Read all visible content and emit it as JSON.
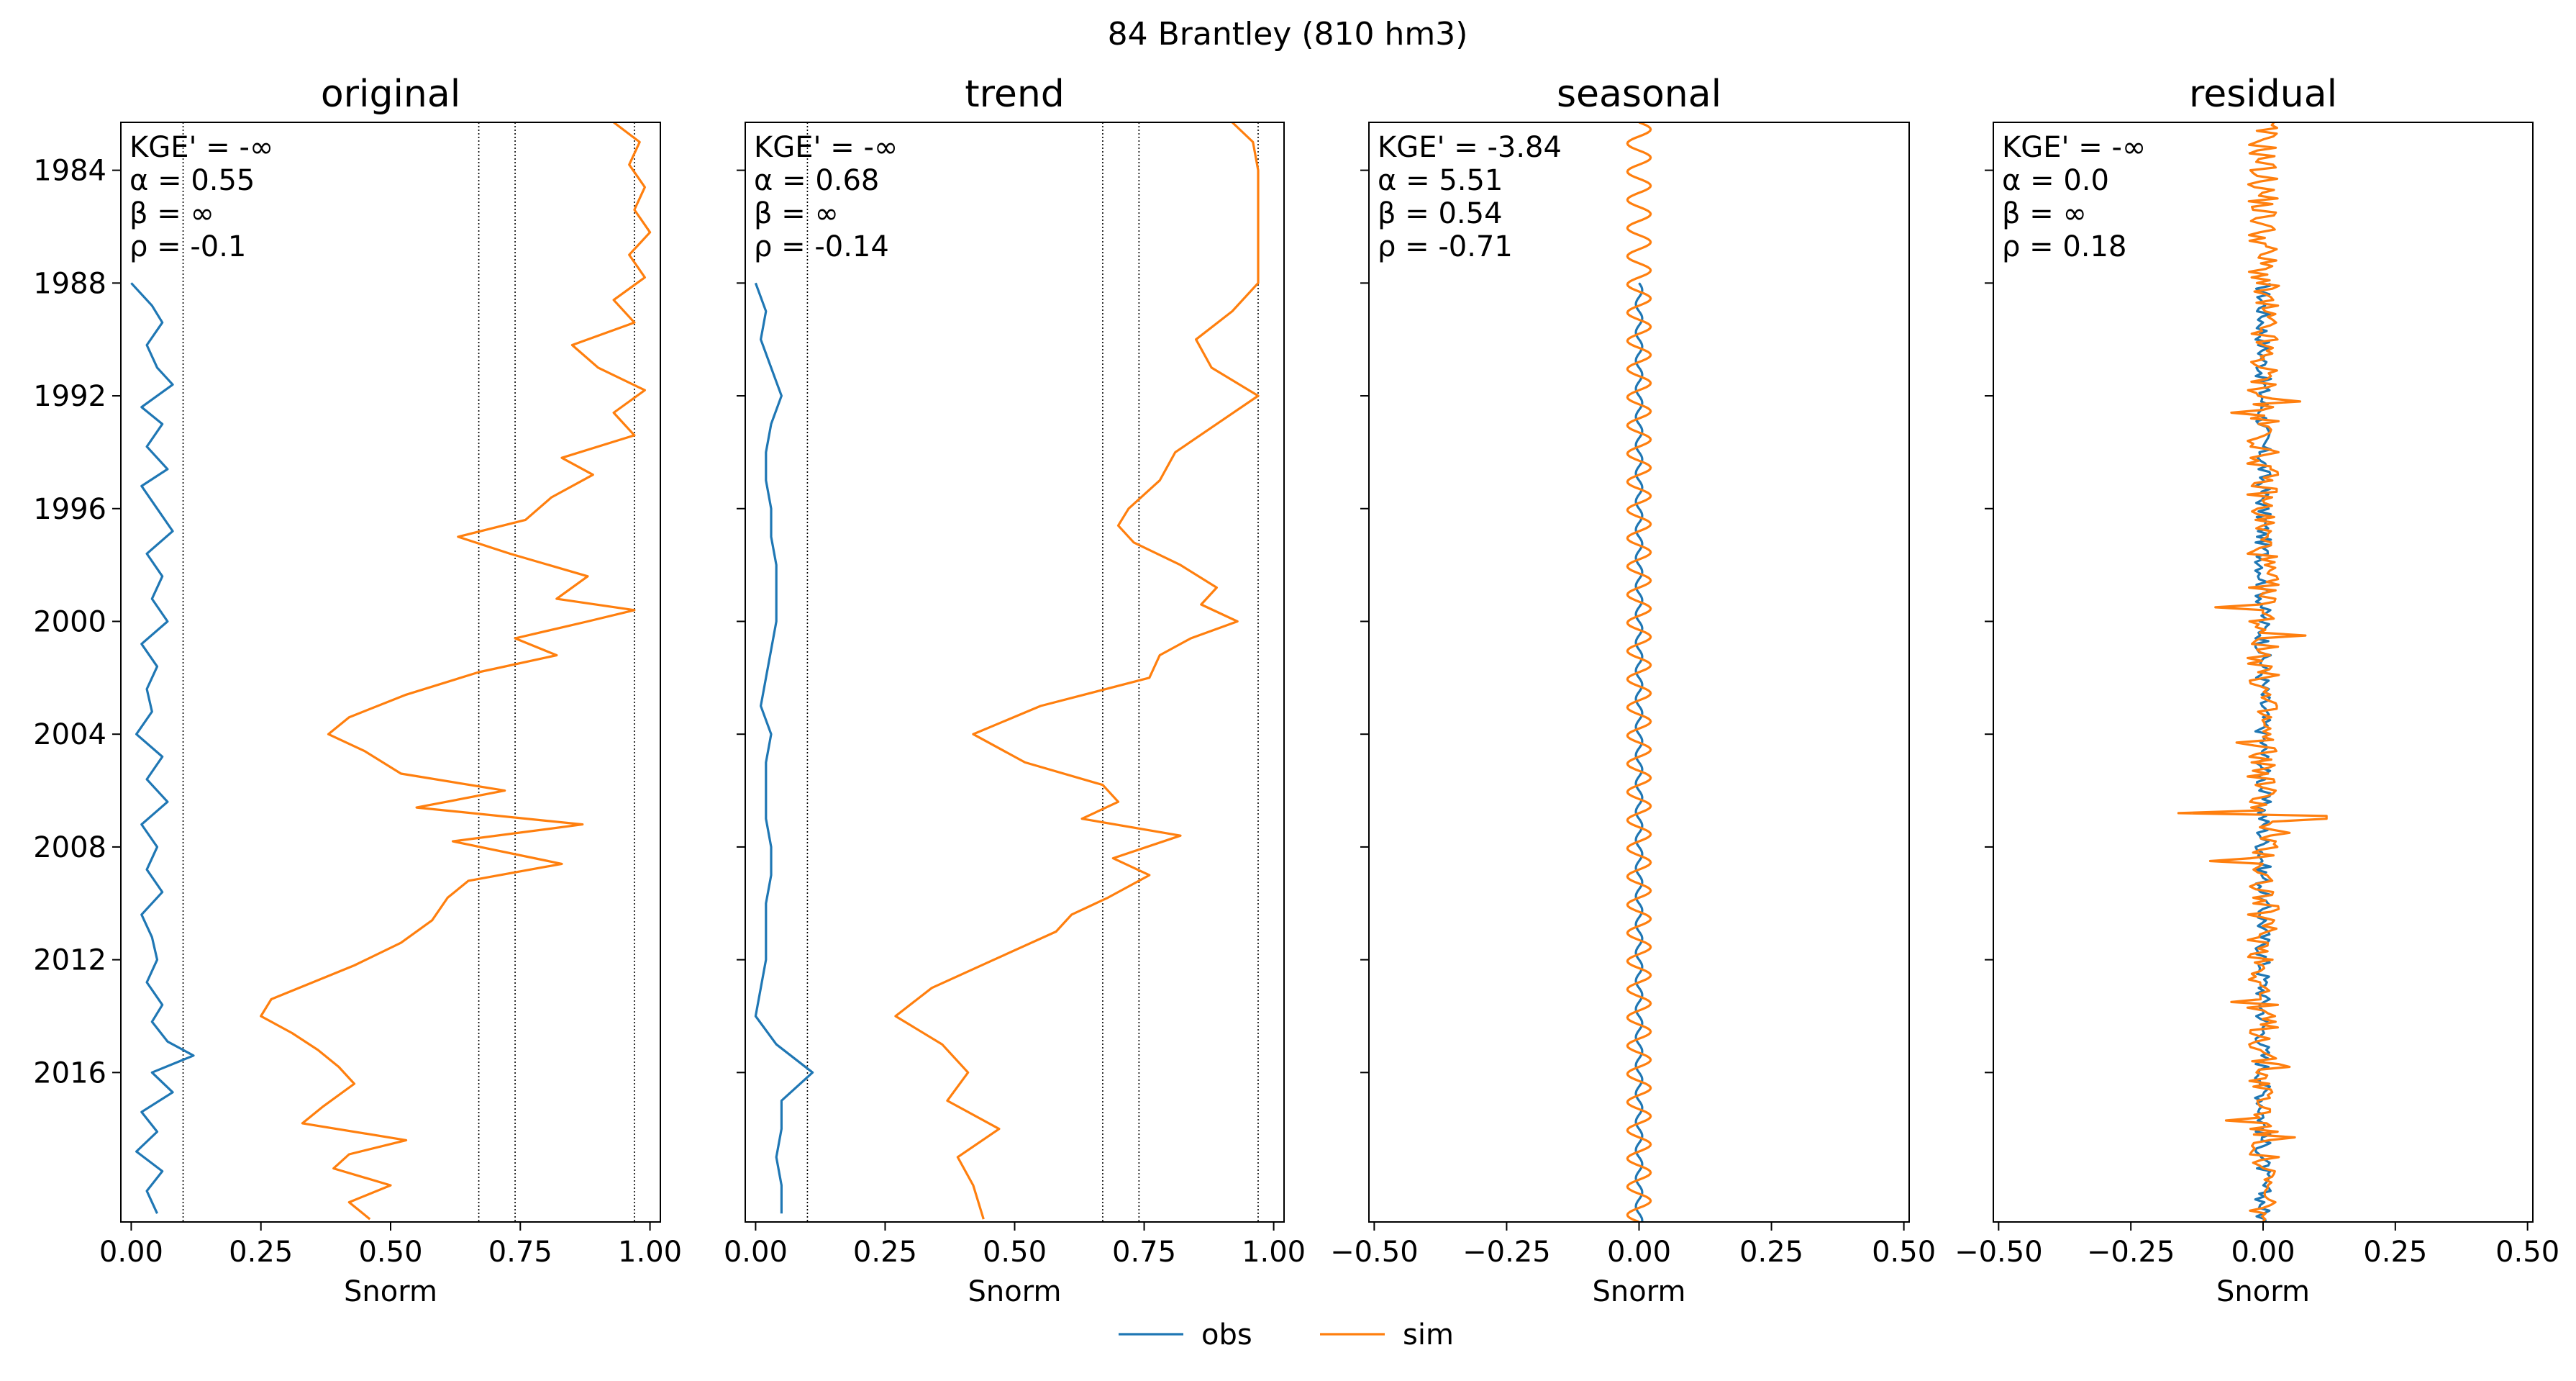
{
  "chart_data": {
    "type": "line",
    "title": "84  Brantley (810 hm3)",
    "ylim": [
      1982.3,
      2021.3
    ],
    "yticks": [
      "1984",
      "1988",
      "1992",
      "1996",
      "2000",
      "2004",
      "2008",
      "2012",
      "2016"
    ],
    "legend": {
      "placement": "bottom-center",
      "entries": [
        {
          "label": "obs",
          "color": "#1f77b4"
        },
        {
          "label": "sim",
          "color": "#ff7f0e"
        }
      ]
    },
    "panels": [
      {
        "title": "original",
        "xlabel": "Snorm",
        "xlim": [
          -0.02,
          1.02
        ],
        "xticks": [
          "0.00",
          "0.25",
          "0.50",
          "0.75",
          "1.00"
        ],
        "xtick_values": [
          0,
          0.25,
          0.5,
          0.75,
          1.0
        ],
        "vlines": [
          0.1,
          0.67,
          0.74,
          0.97
        ],
        "stats": [
          "KGE' = -∞",
          "α = 0.55",
          "β = ∞",
          "ρ = -0.1"
        ],
        "obs": {
          "y": [
            1988,
            1988.8,
            1989.4,
            1990.2,
            1991,
            1991.6,
            1992.4,
            1993,
            1993.8,
            1994.6,
            1995.2,
            1996,
            1996.8,
            1997.6,
            1998.4,
            1999.2,
            2000,
            2000.8,
            2001.6,
            2002.4,
            2003.2,
            2004,
            2004.8,
            2005.6,
            2006.4,
            2007.2,
            2008,
            2008.8,
            2009.6,
            2010.4,
            2011.2,
            2012,
            2012.8,
            2013.6,
            2014.2,
            2014.9,
            2015.4,
            2016,
            2016.7,
            2017.4,
            2018.1,
            2018.8,
            2019.5,
            2020.2,
            2021
          ],
          "x": [
            0.0,
            0.04,
            0.06,
            0.03,
            0.05,
            0.08,
            0.02,
            0.06,
            0.03,
            0.07,
            0.02,
            0.05,
            0.08,
            0.03,
            0.06,
            0.04,
            0.07,
            0.02,
            0.05,
            0.03,
            0.04,
            0.01,
            0.06,
            0.03,
            0.07,
            0.02,
            0.05,
            0.03,
            0.06,
            0.02,
            0.04,
            0.05,
            0.03,
            0.06,
            0.04,
            0.07,
            0.12,
            0.04,
            0.08,
            0.02,
            0.05,
            0.01,
            0.06,
            0.03,
            0.05
          ]
        },
        "sim": {
          "y": [
            1982.3,
            1983,
            1983.8,
            1984.6,
            1985.4,
            1986.2,
            1987,
            1987.8,
            1988.6,
            1989.4,
            1990.2,
            1991,
            1991.8,
            1992.6,
            1993.4,
            1994.2,
            1994.8,
            1995.6,
            1996.4,
            1997,
            1997.6,
            1998.4,
            1999.2,
            1999.6,
            2000,
            2000.6,
            2001.2,
            2001.8,
            2002.6,
            2003.4,
            2004,
            2004.6,
            2005.4,
            2006,
            2006.6,
            2007.2,
            2007.8,
            2008.6,
            2009.2,
            2009.8,
            2010.6,
            2011.4,
            2012.2,
            2012.8,
            2013.4,
            2014,
            2014.6,
            2015.2,
            2015.8,
            2016.4,
            2017.2,
            2017.8,
            2018.4,
            2018.9,
            2019.4,
            2020,
            2020.6,
            2021.2
          ],
          "x": [
            0.93,
            0.98,
            0.96,
            0.99,
            0.97,
            1.0,
            0.96,
            0.99,
            0.93,
            0.97,
            0.85,
            0.9,
            0.99,
            0.93,
            0.97,
            0.83,
            0.89,
            0.81,
            0.76,
            0.63,
            0.73,
            0.88,
            0.82,
            0.97,
            0.88,
            0.74,
            0.82,
            0.67,
            0.53,
            0.42,
            0.38,
            0.45,
            0.52,
            0.72,
            0.55,
            0.87,
            0.62,
            0.83,
            0.65,
            0.61,
            0.58,
            0.52,
            0.43,
            0.35,
            0.27,
            0.25,
            0.31,
            0.36,
            0.4,
            0.43,
            0.37,
            0.33,
            0.53,
            0.42,
            0.39,
            0.5,
            0.42,
            0.46
          ]
        }
      },
      {
        "title": "trend",
        "xlabel": "Snorm",
        "xlim": [
          -0.02,
          1.02
        ],
        "xticks": [
          "0.00",
          "0.25",
          "0.50",
          "0.75",
          "1.00"
        ],
        "xtick_values": [
          0,
          0.25,
          0.5,
          0.75,
          1.0
        ],
        "vlines": [
          0.1,
          0.67,
          0.74,
          0.97
        ],
        "stats": [
          "KGE' = -∞",
          "α = 0.68",
          "β = ∞",
          "ρ = -0.14"
        ],
        "obs": {
          "y": [
            1988,
            1989,
            1990,
            1991,
            1992,
            1993,
            1994,
            1995,
            1996,
            1997,
            1998,
            1999,
            2000,
            2001,
            2002,
            2003,
            2004,
            2005,
            2006,
            2007,
            2008,
            2009,
            2010,
            2011,
            2012,
            2013,
            2014,
            2015,
            2016,
            2017,
            2018,
            2019,
            2020,
            2021
          ],
          "x": [
            0.0,
            0.02,
            0.01,
            0.03,
            0.05,
            0.03,
            0.02,
            0.02,
            0.03,
            0.03,
            0.04,
            0.04,
            0.04,
            0.03,
            0.02,
            0.01,
            0.03,
            0.02,
            0.02,
            0.02,
            0.03,
            0.03,
            0.02,
            0.02,
            0.02,
            0.01,
            0.0,
            0.04,
            0.11,
            0.05,
            0.05,
            0.04,
            0.05,
            0.05
          ]
        },
        "sim": {
          "y": [
            1982.3,
            1983,
            1984,
            1985,
            1986,
            1987,
            1988,
            1989,
            1990,
            1991,
            1992,
            1993,
            1994,
            1995,
            1996,
            1996.6,
            1997.2,
            1998,
            1998.8,
            1999.4,
            2000,
            2000.6,
            2001.2,
            2002,
            2003,
            2004,
            2005,
            2005.8,
            2006.4,
            2007,
            2007.6,
            2008.4,
            2009,
            2009.8,
            2010.4,
            2011,
            2012,
            2013,
            2014,
            2015,
            2016,
            2017,
            2018,
            2019,
            2020,
            2021.2
          ],
          "x": [
            0.92,
            0.96,
            0.97,
            0.97,
            0.97,
            0.97,
            0.97,
            0.92,
            0.85,
            0.88,
            0.97,
            0.89,
            0.81,
            0.78,
            0.72,
            0.7,
            0.73,
            0.82,
            0.89,
            0.86,
            0.93,
            0.84,
            0.78,
            0.76,
            0.55,
            0.42,
            0.52,
            0.67,
            0.7,
            0.63,
            0.82,
            0.69,
            0.76,
            0.68,
            0.61,
            0.58,
            0.46,
            0.34,
            0.27,
            0.36,
            0.41,
            0.37,
            0.47,
            0.39,
            0.42,
            0.44
          ]
        }
      },
      {
        "title": "seasonal",
        "xlabel": "Snorm",
        "xlim": [
          -0.51,
          0.51
        ],
        "xticks": [
          "−0.50",
          "−0.25",
          "0.00",
          "0.25",
          "0.50"
        ],
        "xtick_values": [
          -0.5,
          -0.25,
          0,
          0.25,
          0.5
        ],
        "vlines": [],
        "stats": [
          "KGE' = -3.84",
          "α = 5.51",
          "β = 0.54",
          "ρ = -0.71"
        ],
        "obs": {
          "y_start": 1988,
          "y_end": 2021.3,
          "amplitude": 0.006,
          "period": 1.0
        },
        "sim": {
          "y_start": 1982.3,
          "y_end": 2021.3,
          "amplitude": 0.022,
          "period": 1.0
        }
      },
      {
        "title": "residual",
        "xlabel": "Snorm",
        "xlim": [
          -0.51,
          0.51
        ],
        "xticks": [
          "−0.50",
          "−0.25",
          "0.00",
          "0.25",
          "0.50"
        ],
        "xtick_values": [
          -0.5,
          -0.25,
          0,
          0.25,
          0.5
        ],
        "vlines": [],
        "stats": [
          "KGE' = -∞",
          "α = 0.0",
          "β = ∞",
          "ρ = 0.18"
        ],
        "obs": {
          "y_start": 1988,
          "y_end": 2021.3,
          "amplitude": 0.015
        },
        "sim": {
          "y_start": 1982.3,
          "y_end": 2021.3,
          "amplitude": 0.03,
          "spikes": [
            {
              "y": 1992.2,
              "x": 0.07
            },
            {
              "y": 1992.6,
              "x": -0.06
            },
            {
              "y": 1999.5,
              "x": -0.09
            },
            {
              "y": 2000.5,
              "x": 0.08
            },
            {
              "y": 2004.3,
              "x": -0.05
            },
            {
              "y": 2006.8,
              "x": -0.16
            },
            {
              "y": 2006.95,
              "x": 0.12
            },
            {
              "y": 2007.5,
              "x": 0.05
            },
            {
              "y": 2008.5,
              "x": -0.1
            },
            {
              "y": 2013.5,
              "x": -0.06
            },
            {
              "y": 2015.8,
              "x": 0.05
            },
            {
              "y": 2017.7,
              "x": -0.07
            },
            {
              "y": 2018.3,
              "x": 0.06
            }
          ]
        }
      }
    ]
  }
}
